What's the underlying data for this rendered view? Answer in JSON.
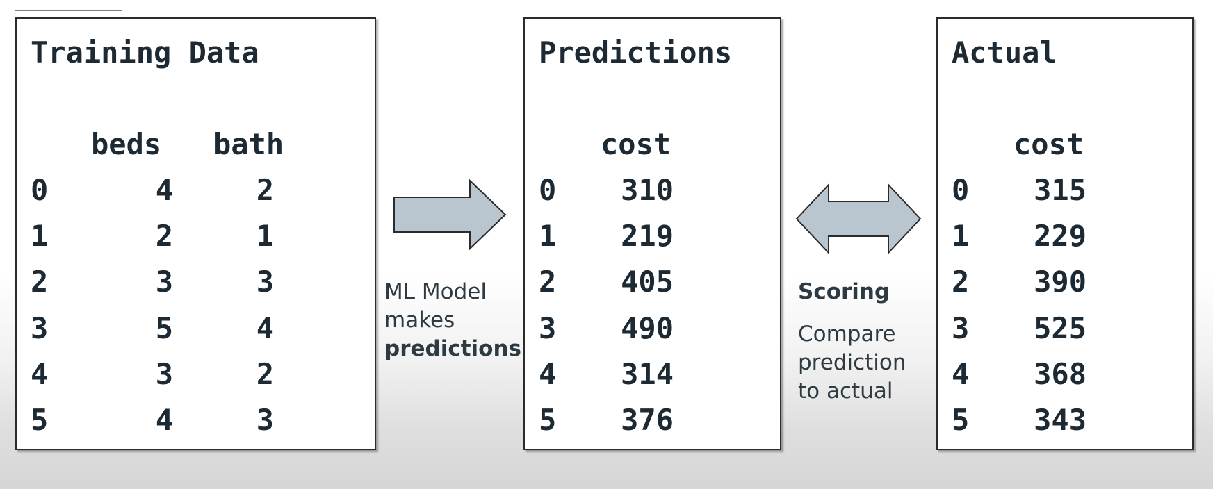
{
  "training": {
    "title": "Training Data",
    "columns": [
      "beds",
      "bath"
    ],
    "rows": [
      {
        "index": "0",
        "beds": "4",
        "bath": "2"
      },
      {
        "index": "1",
        "beds": "2",
        "bath": "1"
      },
      {
        "index": "2",
        "beds": "3",
        "bath": "3"
      },
      {
        "index": "3",
        "beds": "5",
        "bath": "4"
      },
      {
        "index": "4",
        "beds": "3",
        "bath": "2"
      },
      {
        "index": "5",
        "beds": "4",
        "bath": "3"
      }
    ]
  },
  "predictions": {
    "title": "Predictions",
    "column": "cost",
    "rows": [
      {
        "index": "0",
        "cost": "310"
      },
      {
        "index": "1",
        "cost": "219"
      },
      {
        "index": "2",
        "cost": "405"
      },
      {
        "index": "3",
        "cost": "490"
      },
      {
        "index": "4",
        "cost": "314"
      },
      {
        "index": "5",
        "cost": "376"
      }
    ]
  },
  "actual": {
    "title": "Actual",
    "column": "cost",
    "rows": [
      {
        "index": "0",
        "cost": "315"
      },
      {
        "index": "1",
        "cost": "229"
      },
      {
        "index": "2",
        "cost": "390"
      },
      {
        "index": "3",
        "cost": "525"
      },
      {
        "index": "4",
        "cost": "368"
      },
      {
        "index": "5",
        "cost": "343"
      }
    ]
  },
  "model_caption": {
    "line1": "ML Model",
    "line2": "makes",
    "line3": "predictions"
  },
  "scoring_caption": {
    "heading": "Scoring",
    "line1": "Compare",
    "line2": "prediction",
    "line3": "to actual"
  },
  "colors": {
    "arrow_fill": "#b9c5cf",
    "arrow_stroke": "#2b2b2b",
    "text": "#1d2a33",
    "panel_border": "#2b2b2b"
  },
  "icons": {
    "model_arrow": "right-arrow-icon",
    "scoring_arrow": "double-arrow-icon"
  }
}
